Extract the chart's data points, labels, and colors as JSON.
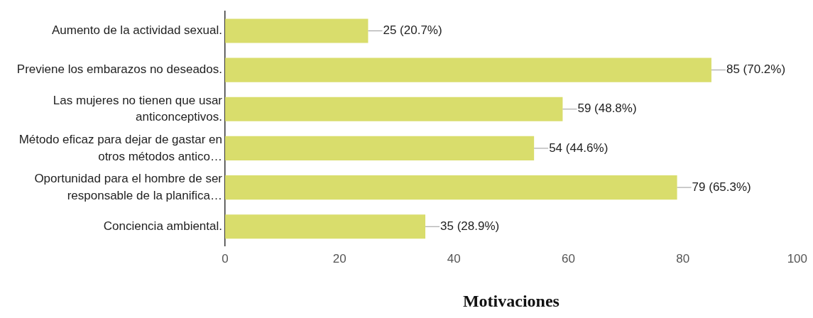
{
  "chart_data": {
    "type": "bar",
    "orientation": "horizontal",
    "xlabel": "Motivaciones",
    "categories": [
      "Aumento de la actividad sexual.",
      "Previene los embarazos no deseados.",
      "Las mujeres no tienen que usar anticonceptivos.",
      "Método eficaz para dejar de gastar en otros métodos antico…",
      "Oportunidad para el hombre de ser responsable de la planifica…",
      "Conciencia ambiental."
    ],
    "values": [
      25,
      85,
      59,
      54,
      79,
      35
    ],
    "value_labels": [
      "25 (20.7%)",
      "85 (70.2%)",
      "59 (48.8%)",
      "54 (44.6%)",
      "79 (65.3%)",
      "35 (28.9%)"
    ],
    "color": "#d9dd6c",
    "xlim": [
      0,
      100
    ],
    "xticks": [
      0,
      20,
      40,
      60,
      80,
      100
    ],
    "grid": false,
    "legend": false
  }
}
